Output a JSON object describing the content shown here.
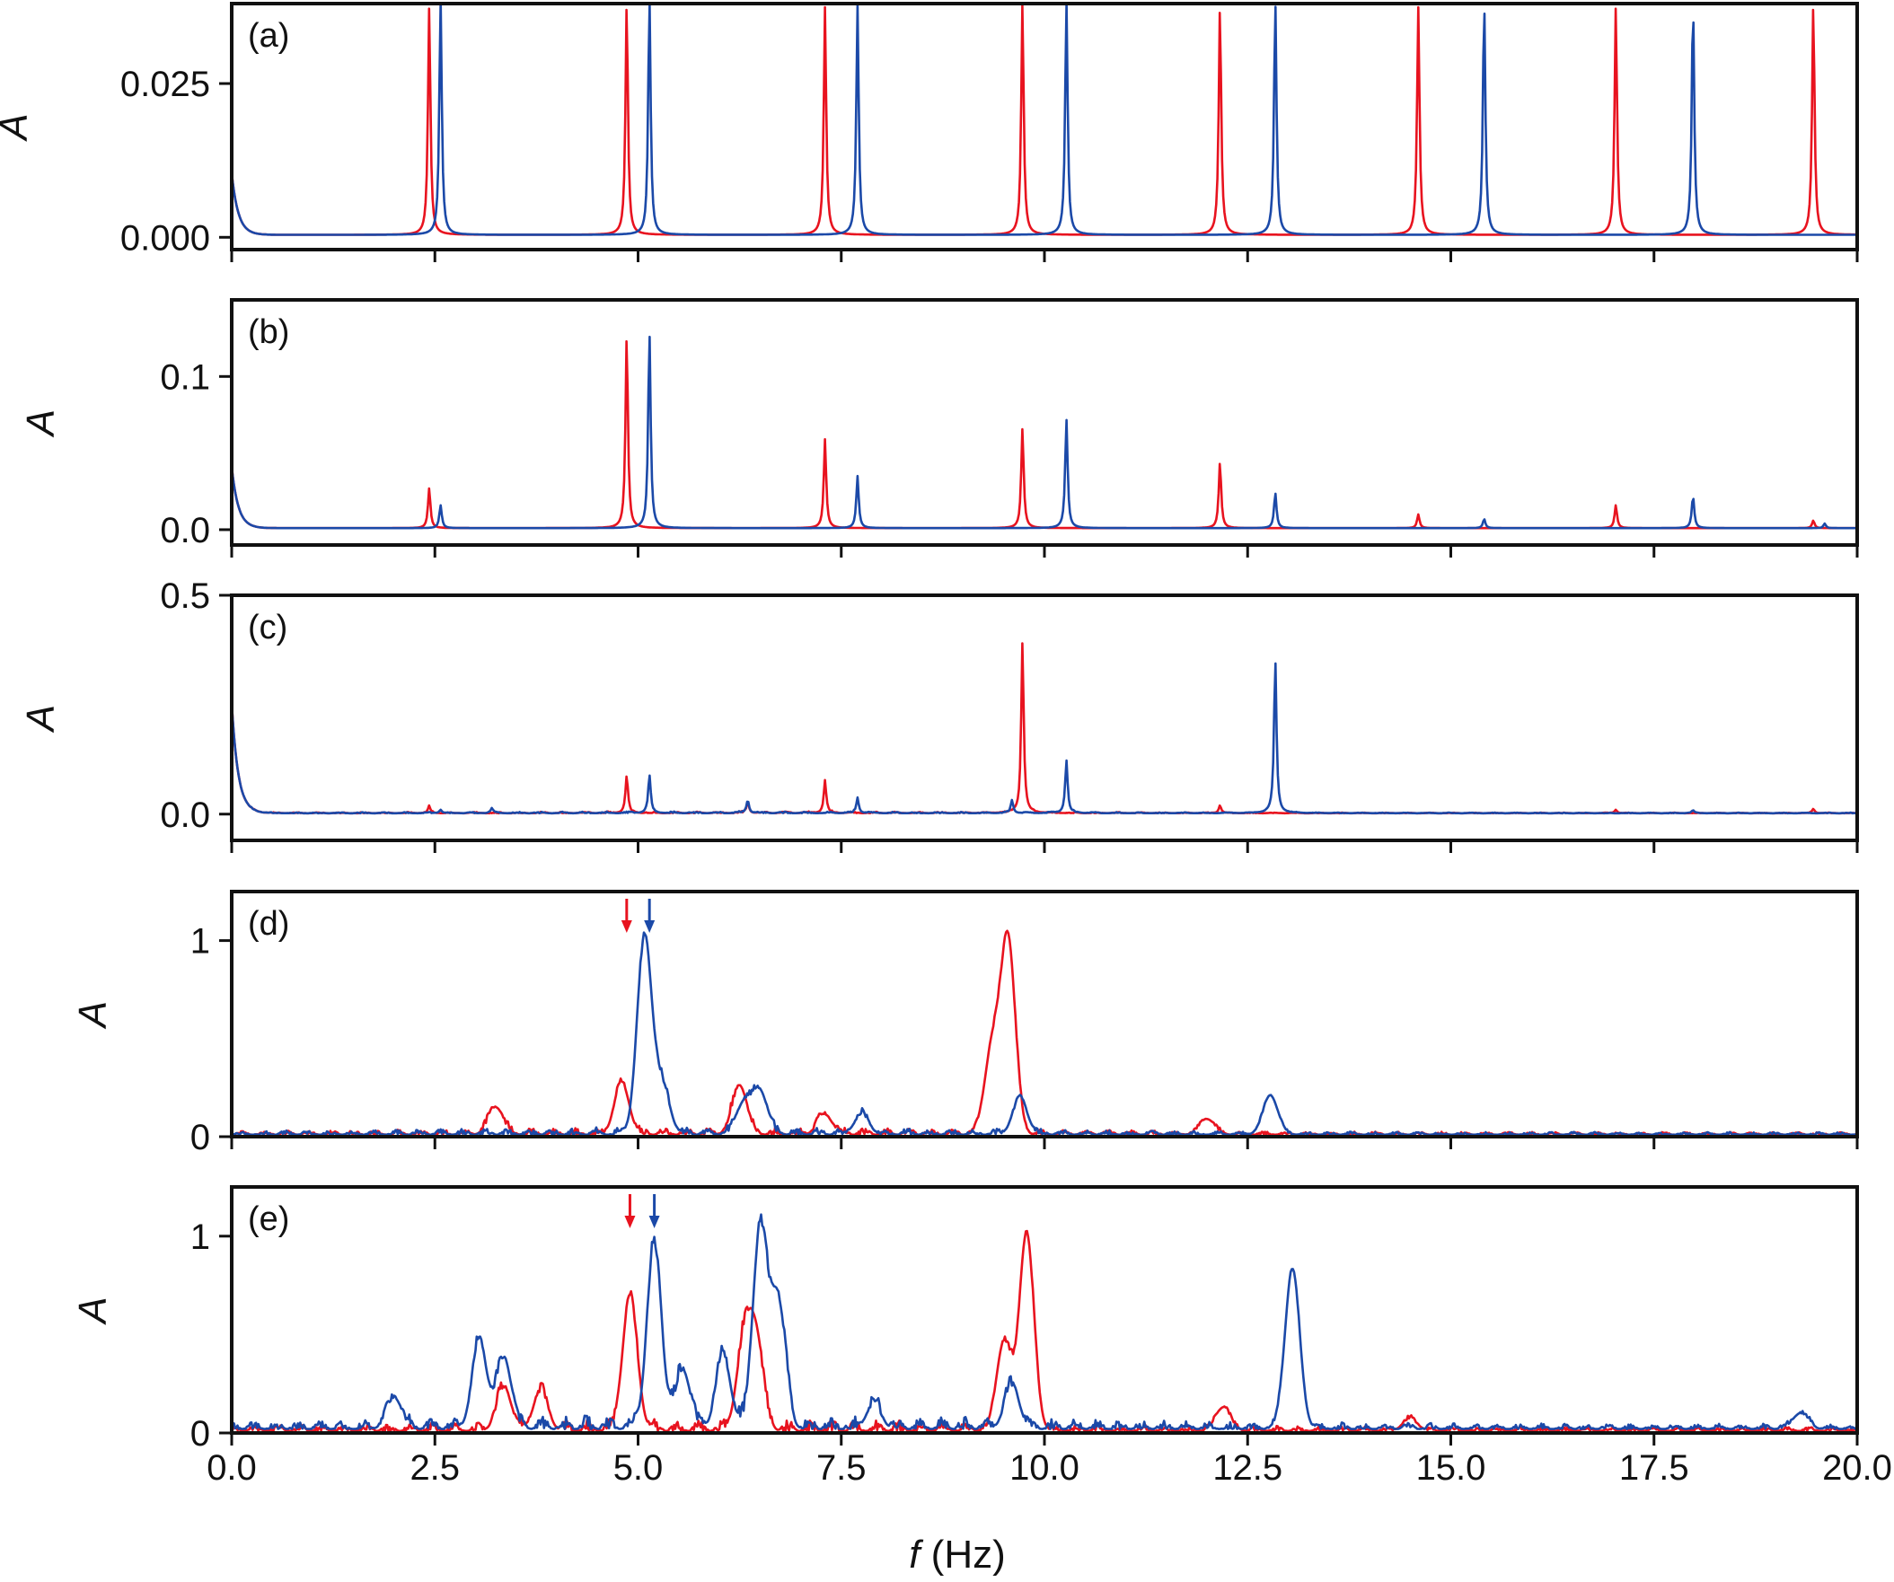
{
  "figure": {
    "xlabel_symbol": "f",
    "xlabel_unit": " (Hz)",
    "xticks": [
      "0.0",
      "2.5",
      "5.0",
      "7.5",
      "10.0",
      "12.5",
      "15.0",
      "17.5",
      "20.0"
    ],
    "xtick_values": [
      0,
      2.5,
      5,
      7.5,
      10,
      12.5,
      15,
      17.5,
      20
    ],
    "colors": {
      "red": "#e8131f",
      "blue": "#1b49a8",
      "axis": "#111111"
    }
  },
  "chart_data": [
    {
      "type": "line",
      "panel": "(a)",
      "ylabel": "A",
      "xlim": [
        0,
        20
      ],
      "ylim": [
        -0.002,
        0.038
      ],
      "yticks": [
        "0.000",
        "0.025"
      ],
      "ytick_values": [
        0,
        0.025
      ],
      "grid": false,
      "series": [
        {
          "color": "red",
          "peaks": [
            [
              2.43,
              0.037
            ],
            [
              4.86,
              0.0375
            ],
            [
              7.3,
              0.037
            ],
            [
              9.73,
              0.0375
            ],
            [
              12.16,
              0.037
            ],
            [
              14.6,
              0.037
            ],
            [
              17.03,
              0.037
            ],
            [
              19.46,
              0.0375
            ]
          ],
          "base": 0.0004,
          "noise": 0.0
        },
        {
          "color": "blue",
          "peaks": [
            [
              2.57,
              0.0385
            ],
            [
              5.14,
              0.0385
            ],
            [
              7.7,
              0.0375
            ],
            [
              10.27,
              0.038
            ],
            [
              12.84,
              0.038
            ],
            [
              15.41,
              0.038
            ],
            [
              17.98,
              0.038
            ]
          ],
          "base": 0.0004,
          "noise": 0.0
        }
      ]
    },
    {
      "type": "line",
      "panel": "(b)",
      "ylabel": "A",
      "xlim": [
        0,
        20
      ],
      "ylim": [
        -0.01,
        0.15
      ],
      "yticks": [
        "0.0",
        "0.1"
      ],
      "ytick_values": [
        0,
        0.1
      ],
      "grid": false,
      "series": [
        {
          "color": "red",
          "peaks": [
            [
              2.43,
              0.026
            ],
            [
              4.86,
              0.125
            ],
            [
              7.3,
              0.058
            ],
            [
              9.73,
              0.065
            ],
            [
              12.16,
              0.043
            ],
            [
              14.6,
              0.009
            ],
            [
              17.03,
              0.015
            ],
            [
              19.46,
              0.005
            ]
          ],
          "base": 0.001,
          "noise": 0.0
        },
        {
          "color": "blue",
          "peaks": [
            [
              2.57,
              0.015
            ],
            [
              5.14,
              0.128
            ],
            [
              7.7,
              0.034
            ],
            [
              10.27,
              0.071
            ],
            [
              12.84,
              0.023
            ],
            [
              15.41,
              0.006
            ],
            [
              17.98,
              0.021
            ],
            [
              19.6,
              0.003
            ]
          ],
          "base": 0.001,
          "noise": 0.0
        }
      ]
    },
    {
      "type": "line",
      "panel": "(c)",
      "ylabel": "A",
      "xlim": [
        0,
        20
      ],
      "ylim": [
        -0.06,
        0.5
      ],
      "yticks": [
        "0.0",
        "0.5"
      ],
      "ytick_values": [
        0,
        0.5
      ],
      "grid": false,
      "series": [
        {
          "color": "red",
          "peaks": [
            [
              2.43,
              0.015
            ],
            [
              4.86,
              0.085
            ],
            [
              6.35,
              0.025
            ],
            [
              7.3,
              0.075
            ],
            [
              9.73,
              0.39
            ],
            [
              12.16,
              0.018
            ],
            [
              17.03,
              0.008
            ],
            [
              19.46,
              0.01
            ]
          ],
          "base": 0.002,
          "noise": 0.004
        },
        {
          "color": "blue",
          "peaks": [
            [
              2.57,
              0.008
            ],
            [
              3.2,
              0.01
            ],
            [
              5.14,
              0.085
            ],
            [
              6.35,
              0.03
            ],
            [
              7.7,
              0.035
            ],
            [
              9.6,
              0.03
            ],
            [
              10.27,
              0.12
            ],
            [
              12.84,
              0.35
            ],
            [
              17.98,
              0.006
            ]
          ],
          "base": 0.002,
          "noise": 0.004
        }
      ]
    },
    {
      "type": "line",
      "panel": "(d)",
      "ylabel": "A",
      "xlim": [
        0,
        20
      ],
      "ylim": [
        0,
        1.25
      ],
      "yticks": [
        "0",
        "1"
      ],
      "ytick_values": [
        0,
        1
      ],
      "grid": false,
      "arrows": [
        {
          "x": 4.86,
          "color": "red"
        },
        {
          "x": 5.14,
          "color": "blue"
        }
      ],
      "series": [
        {
          "color": "red",
          "peaks": [
            [
              3.25,
              0.14
            ],
            [
              4.8,
              0.26
            ],
            [
              6.25,
              0.25
            ],
            [
              9.55,
              1.0
            ],
            [
              9.35,
              0.42
            ],
            [
              12.0,
              0.08
            ],
            [
              7.3,
              0.1
            ]
          ],
          "base": 0.01,
          "noise": 0.04
        },
        {
          "color": "blue",
          "peaks": [
            [
              5.08,
              1.0
            ],
            [
              5.3,
              0.24
            ],
            [
              6.5,
              0.22
            ],
            [
              6.3,
              0.16
            ],
            [
              7.75,
              0.1
            ],
            [
              9.7,
              0.18
            ],
            [
              12.78,
              0.2
            ]
          ],
          "base": 0.01,
          "noise": 0.04
        }
      ]
    },
    {
      "type": "line",
      "panel": "(e)",
      "ylabel": "A",
      "xlim": [
        0,
        20
      ],
      "ylim": [
        0,
        1.25
      ],
      "yticks": [
        "0",
        "1"
      ],
      "ytick_values": [
        0,
        1
      ],
      "grid": false,
      "arrows": [
        {
          "x": 4.9,
          "color": "red"
        },
        {
          "x": 5.2,
          "color": "blue"
        }
      ],
      "series": [
        {
          "color": "red",
          "peaks": [
            [
              3.35,
              0.22
            ],
            [
              3.8,
              0.2
            ],
            [
              4.9,
              0.68
            ],
            [
              6.3,
              0.42
            ],
            [
              6.45,
              0.45
            ],
            [
              9.5,
              0.45
            ],
            [
              9.78,
              1.0
            ],
            [
              12.2,
              0.12
            ],
            [
              14.5,
              0.06
            ]
          ],
          "base": 0.01,
          "noise": 0.06
        },
        {
          "color": "blue",
          "peaks": [
            [
              2.0,
              0.16
            ],
            [
              3.05,
              0.44
            ],
            [
              3.35,
              0.36
            ],
            [
              5.2,
              0.92
            ],
            [
              5.55,
              0.3
            ],
            [
              6.05,
              0.36
            ],
            [
              6.5,
              1.0
            ],
            [
              6.72,
              0.65
            ],
            [
              7.9,
              0.12
            ],
            [
              9.6,
              0.22
            ],
            [
              13.05,
              0.81
            ],
            [
              19.3,
              0.08
            ]
          ],
          "base": 0.02,
          "noise": 0.08
        }
      ]
    }
  ]
}
